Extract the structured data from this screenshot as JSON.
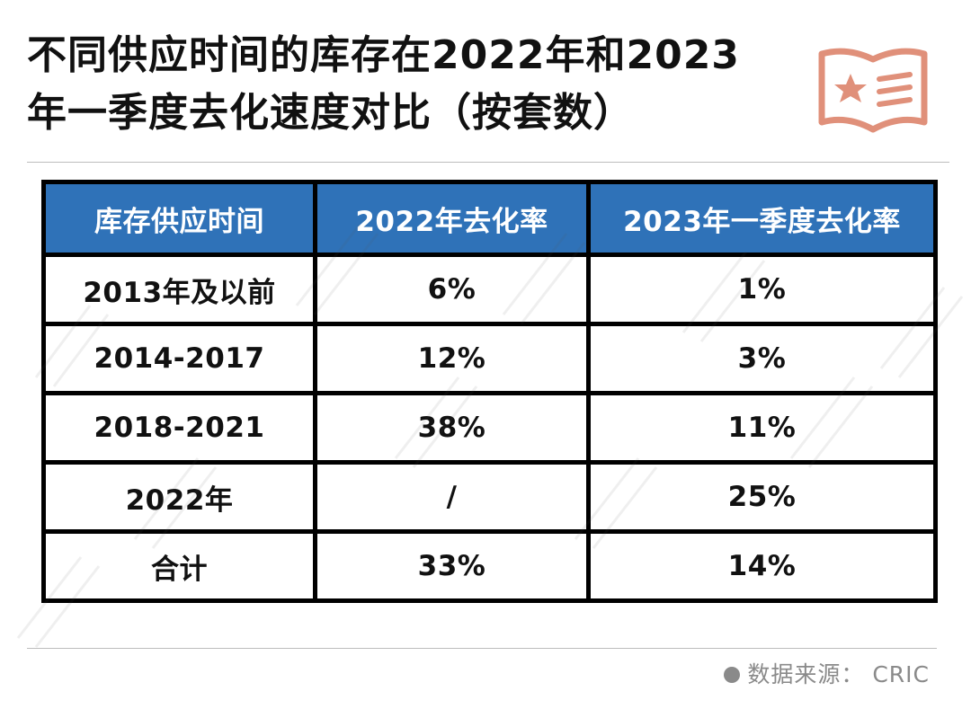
{
  "title": {
    "line1": "不同供应时间的库存在2022年和2023",
    "line2": "年一季度去化速度对比（按套数）"
  },
  "table": {
    "headers": [
      "库存供应时间",
      "2022年去化率",
      "2023年一季度去化率"
    ],
    "rows": [
      [
        "2013年及以前",
        "6%",
        "1%"
      ],
      [
        "2014-2017",
        "12%",
        "3%"
      ],
      [
        "2018-2021",
        "38%",
        "11%"
      ],
      [
        "2022年",
        "/",
        "25%"
      ],
      [
        "合计",
        "33%",
        "14%"
      ]
    ]
  },
  "source": {
    "text": "数据来源：  CRIC"
  },
  "colors": {
    "header_bg": "#2f72b8",
    "logo": "#e0907a",
    "source_text": "#8a8a8a"
  },
  "icons": {
    "logo": "star-document-icon"
  }
}
